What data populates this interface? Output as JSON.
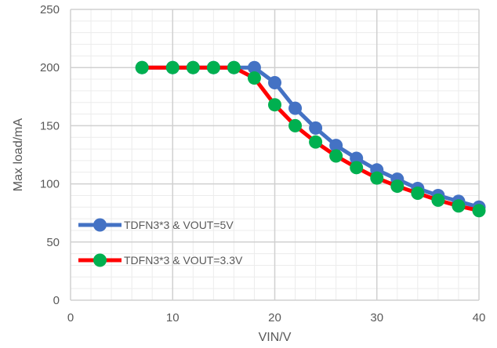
{
  "chart_data": {
    "type": "line",
    "title": "",
    "xlabel": "VIN/V",
    "ylabel": "Max load/mA",
    "xlim": [
      0,
      40
    ],
    "ylim": [
      0,
      250
    ],
    "xticks": [
      0,
      10,
      20,
      30,
      40
    ],
    "yticks": [
      0,
      50,
      100,
      150,
      200,
      250
    ],
    "x_minor_step": 2,
    "y_minor_step": 10,
    "grid": true,
    "legend_position": "lower-left inside",
    "series": [
      {
        "name": "TDFN3*3 & VOUT=5V",
        "color": "#4472C4",
        "marker_color": "#4472C4",
        "points": [
          [
            7,
            200
          ],
          [
            10,
            200
          ],
          [
            12,
            200
          ],
          [
            14,
            200
          ],
          [
            16,
            200
          ],
          [
            18,
            200
          ],
          [
            20,
            187
          ],
          [
            22,
            165
          ],
          [
            24,
            148
          ],
          [
            26,
            133
          ],
          [
            28,
            122
          ],
          [
            30,
            112
          ],
          [
            32,
            104
          ],
          [
            34,
            96
          ],
          [
            36,
            90
          ],
          [
            38,
            85
          ],
          [
            40,
            80
          ]
        ]
      },
      {
        "name": "TDFN3*3 & VOUT=3.3V",
        "color": "#FF0000",
        "marker_color": "#00B050",
        "points": [
          [
            7,
            200
          ],
          [
            10,
            200
          ],
          [
            12,
            200
          ],
          [
            14,
            200
          ],
          [
            16,
            200
          ],
          [
            18,
            191
          ],
          [
            20,
            168
          ],
          [
            22,
            150
          ],
          [
            24,
            136
          ],
          [
            26,
            124
          ],
          [
            28,
            114
          ],
          [
            30,
            105
          ],
          [
            32,
            98
          ],
          [
            34,
            92
          ],
          [
            36,
            86
          ],
          [
            38,
            81
          ],
          [
            40,
            77
          ]
        ]
      }
    ]
  }
}
